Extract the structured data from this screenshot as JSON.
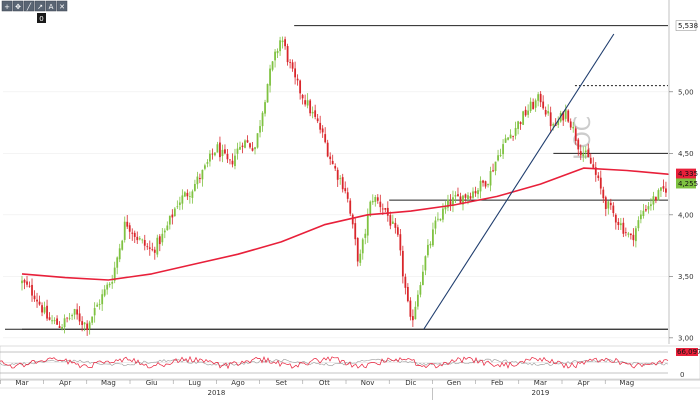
{
  "toolbar": {
    "buttons": [
      {
        "icon": "crosshair-icon",
        "glyph": "+"
      },
      {
        "icon": "pointer-icon",
        "glyph": "✥"
      },
      {
        "icon": "trendline-icon",
        "glyph": "╱"
      },
      {
        "icon": "fibonacci-icon",
        "glyph": "↗"
      },
      {
        "icon": "text-tool-icon",
        "glyph": "A"
      },
      {
        "icon": "delete-icon",
        "glyph": "✕"
      }
    ],
    "counter": "0"
  },
  "watermark": "LOC",
  "colors": {
    "up": "#7fc241",
    "down": "#d9262b",
    "ma": "#e8203a",
    "trendline": "#1f3d6e",
    "level": "#222222",
    "current_badge": "#7fc241",
    "ma_badge": "#e8203a",
    "osc_line": "#e8203a",
    "osc_fill": "#c8c8c8"
  },
  "chart_data": {
    "type": "candlestick",
    "y_axis": {
      "min": 2.95,
      "max": 5.6,
      "ticks": [
        "3,00",
        "3,50",
        "4,00",
        "4,50",
        "5,00"
      ],
      "tick_values": [
        3.0,
        3.5,
        4.0,
        4.5,
        5.0
      ]
    },
    "x_axis": {
      "months": [
        "Mar",
        "Apr",
        "Mag",
        "Giu",
        "Lug",
        "Ago",
        "Set",
        "Ott",
        "Nov",
        "Dic",
        "Gen",
        "Feb",
        "Mar",
        "Apr",
        "Mag",
        "Giu"
      ],
      "years": [
        "2018",
        "2019"
      ],
      "year_positions_month_index": [
        4.5,
        12.0
      ]
    },
    "price_labels": {
      "high": "5,538",
      "current": "4,255",
      "ma": "4,335"
    },
    "oscillator_labels": {
      "top_level": "66,0975",
      "bottom_level": "0"
    },
    "series": [
      {
        "name": "Price (weekly closes)",
        "x_month_index": [
          0.0,
          0.3,
          0.6,
          0.9,
          1.2,
          1.5,
          1.8,
          2.1,
          2.4,
          2.7,
          3.0,
          3.3,
          3.6,
          3.9,
          4.2,
          4.5,
          4.8,
          5.1,
          5.4,
          5.7,
          6.0,
          6.3,
          6.6,
          6.9,
          7.2,
          7.5,
          7.8,
          8.1,
          8.4,
          8.7,
          9.0,
          9.3,
          9.6,
          9.9,
          10.2,
          10.5,
          10.8,
          11.1,
          11.4,
          11.7,
          12.0,
          12.3,
          12.6,
          12.9,
          13.2,
          13.5,
          13.8,
          14.1,
          14.4,
          14.7,
          15.0,
          15.3,
          15.5
        ],
        "values": [
          3.45,
          3.35,
          3.15,
          3.1,
          3.2,
          3.1,
          3.3,
          3.5,
          3.95,
          3.8,
          3.7,
          3.85,
          4.1,
          4.2,
          4.35,
          4.55,
          4.4,
          4.6,
          4.55,
          5.1,
          5.45,
          5.1,
          4.9,
          4.7,
          4.4,
          4.2,
          3.6,
          4.15,
          4.05,
          3.8,
          3.1,
          3.6,
          3.95,
          4.1,
          4.15,
          4.2,
          4.3,
          4.55,
          4.7,
          4.85,
          4.95,
          4.7,
          4.85,
          4.55,
          4.4,
          4.1,
          3.95,
          3.8,
          4.05,
          4.15,
          4.25,
          4.2,
          4.26
        ]
      },
      {
        "name": "Moving average",
        "x_month_index": [
          0,
          1,
          2,
          3,
          4,
          5,
          6,
          7,
          8,
          9,
          10,
          11,
          12,
          13,
          14,
          15,
          15.5
        ],
        "values": [
          3.52,
          3.49,
          3.47,
          3.52,
          3.6,
          3.68,
          3.78,
          3.92,
          4.0,
          4.03,
          4.08,
          4.15,
          4.25,
          4.38,
          4.36,
          4.33,
          4.335
        ]
      }
    ],
    "levels": [
      {
        "value": 5.538,
        "from_month": 6.3,
        "to_month": 15.6,
        "style": "solid"
      },
      {
        "value": 5.05,
        "from_month": 12.8,
        "to_month": 15.6,
        "style": "dashed"
      },
      {
        "value": 4.5,
        "from_month": 12.3,
        "to_month": 15.6,
        "style": "solid"
      },
      {
        "value": 4.12,
        "from_month": 8.5,
        "to_month": 15.6,
        "style": "solid"
      },
      {
        "value": 3.07,
        "from_month": 0.0,
        "to_month": 15.6,
        "style": "solid"
      }
    ],
    "trendline": {
      "from": {
        "month": 9.3,
        "value": 3.07
      },
      "to": {
        "month": 13.7,
        "value": 5.47
      }
    }
  }
}
